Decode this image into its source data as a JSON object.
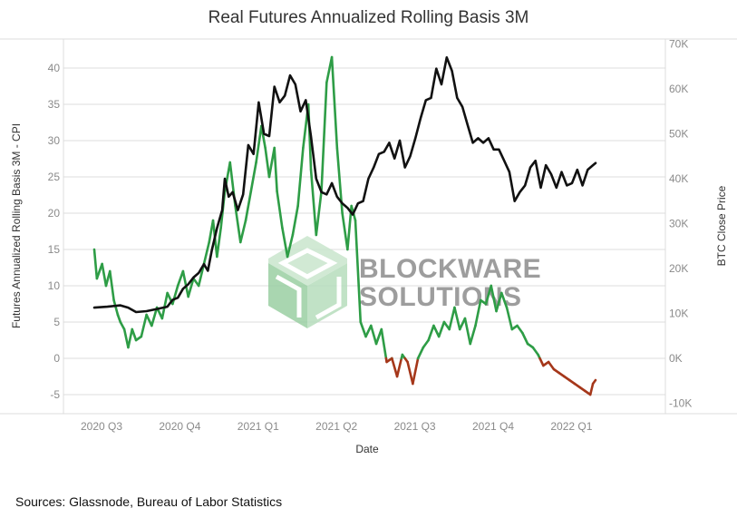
{
  "title": "Real Futures Annualized Rolling Basis 3M",
  "source": "Sources: Glassnode, Bureau of Labor Statistics",
  "watermark": {
    "line1": "BLOCKWARE",
    "line2": "SOLUTIONS"
  },
  "colors": {
    "basis_positive": "#2e9d46",
    "basis_negative": "#a5371a",
    "btc_price": "#111111",
    "watermark_green": "#9bcfa3",
    "watermark_text": "#8d8d8d",
    "grid": "#dcdcdc"
  },
  "chart_data": {
    "type": "line",
    "title": "Real Futures Annualized Rolling Basis 3M",
    "xlabel": "Date",
    "ylabel": "Futures Annualized Rolling Basis 3M - CPI",
    "y2label": "BTC Close Price",
    "ylim": [
      -7.5,
      42.5
    ],
    "y2lim": [
      -10000,
      70000
    ],
    "yticks": [
      "40",
      "35",
      "30",
      "25",
      "20",
      "15",
      "10",
      "5",
      "0",
      "-5"
    ],
    "y2ticks": [
      "70K",
      "60K",
      "50K",
      "40K",
      "30K",
      "20K",
      "10K",
      "0K",
      "-10K"
    ],
    "xticks": [
      "2020 Q3",
      "2020 Q4",
      "2021 Q1",
      "2021 Q2",
      "2021 Q3",
      "2021 Q4",
      "2022 Q1"
    ],
    "x_unit": "months since 2020 Q3 start",
    "grid": "horizontal",
    "series": [
      {
        "axis": "left",
        "note": "drawn green when value >= 0, red-brown when below 0",
        "x": [
          0.0,
          0.1,
          0.3,
          0.45,
          0.6,
          0.75,
          0.9,
          1.0,
          1.15,
          1.3,
          1.45,
          1.6,
          1.8,
          2.0,
          2.2,
          2.4,
          2.6,
          2.8,
          3.0,
          3.2,
          3.4,
          3.6,
          3.8,
          4.0,
          4.2,
          4.4,
          4.55,
          4.7,
          4.85,
          5.0,
          5.2,
          5.4,
          5.6,
          5.8,
          6.0,
          6.2,
          6.4,
          6.55,
          6.7,
          6.9,
          7.0,
          7.2,
          7.4,
          7.6,
          7.8,
          8.0,
          8.2,
          8.3,
          8.5,
          8.7,
          8.9,
          9.1,
          9.3,
          9.5,
          9.7,
          9.85,
          10.0,
          10.2,
          10.4,
          10.6,
          10.8,
          11.0,
          11.2,
          11.4,
          11.6,
          11.8,
          12.0,
          12.2,
          12.4,
          12.6,
          12.8,
          13.0,
          13.2,
          13.4,
          13.6,
          13.8,
          14.0,
          14.2,
          14.4,
          14.6,
          14.8,
          15.0,
          15.2,
          15.4,
          15.6,
          15.8,
          16.0,
          16.2,
          16.4,
          16.6,
          16.8,
          17.0,
          17.2,
          17.4,
          17.6,
          17.8,
          18.0,
          18.2,
          18.4,
          18.6,
          18.8,
          19.0,
          19.1,
          19.2
        ],
        "y": [
          15,
          11,
          13,
          10,
          12,
          8,
          6,
          5,
          4,
          1.5,
          4,
          2.5,
          3,
          6,
          4.5,
          7,
          5.5,
          9,
          7.5,
          10,
          12,
          8.5,
          11,
          10,
          13,
          16,
          19,
          14,
          18,
          23,
          27,
          21,
          16,
          19,
          23,
          27,
          32,
          29,
          25,
          29,
          23,
          18,
          14,
          17,
          21,
          29,
          35,
          26,
          17,
          23,
          38,
          41.5,
          29,
          20,
          15,
          21,
          19,
          5,
          3,
          4.5,
          2,
          4,
          -0.5,
          0,
          -2.5,
          0.5,
          -0.5,
          -3.5,
          0,
          1.5,
          2.5,
          4.5,
          3,
          5,
          4,
          7,
          4,
          5.5,
          2,
          4.5,
          8,
          7.5,
          10,
          6.5,
          9,
          7,
          4,
          4.5,
          3.5,
          2,
          1.5,
          0.5,
          -1,
          -0.5,
          -1.5,
          -2,
          -2.5,
          -3,
          -3.5,
          -4,
          -4.5,
          -5,
          -3.5,
          -3
        ]
      },
      {
        "axis": "right",
        "x": [
          0.0,
          0.5,
          1.0,
          1.3,
          1.6,
          2.0,
          2.4,
          2.8,
          3.0,
          3.2,
          3.4,
          3.6,
          3.8,
          4.0,
          4.2,
          4.35,
          4.5,
          4.7,
          4.9,
          5.0,
          5.15,
          5.3,
          5.5,
          5.7,
          5.9,
          6.1,
          6.3,
          6.5,
          6.7,
          6.9,
          7.1,
          7.3,
          7.5,
          7.7,
          7.9,
          8.1,
          8.3,
          8.5,
          8.7,
          8.9,
          9.1,
          9.3,
          9.5,
          9.7,
          9.9,
          10.1,
          10.3,
          10.5,
          10.7,
          10.9,
          11.1,
          11.3,
          11.5,
          11.7,
          11.9,
          12.1,
          12.3,
          12.5,
          12.7,
          12.9,
          13.1,
          13.3,
          13.5,
          13.7,
          13.9,
          14.1,
          14.3,
          14.5,
          14.7,
          14.9,
          15.1,
          15.3,
          15.5,
          15.7,
          15.9,
          16.1,
          16.3,
          16.5,
          16.7,
          16.9,
          17.1,
          17.3,
          17.5,
          17.7,
          17.9,
          18.1,
          18.3,
          18.5,
          18.7,
          18.9,
          19.1,
          19.2
        ],
        "y": [
          11300,
          11500,
          11800,
          11300,
          10300,
          10500,
          11000,
          11500,
          13000,
          13500,
          15500,
          16500,
          18000,
          19000,
          21000,
          19500,
          24000,
          29000,
          33000,
          40000,
          36000,
          37000,
          33000,
          36500,
          47500,
          45500,
          57000,
          50000,
          49500,
          60500,
          57000,
          58500,
          63000,
          61000,
          55000,
          57500,
          49500,
          40000,
          37000,
          36500,
          39000,
          36000,
          34500,
          33500,
          32000,
          34500,
          35000,
          40000,
          42500,
          45500,
          46000,
          48000,
          44500,
          48500,
          42500,
          45000,
          49000,
          53500,
          57500,
          58000,
          64500,
          61000,
          67000,
          64000,
          58000,
          56000,
          52000,
          48000,
          49000,
          48000,
          49000,
          46500,
          46500,
          44000,
          41500,
          35000,
          37000,
          38500,
          42500,
          44000,
          38000,
          43000,
          41000,
          38000,
          41500,
          38500,
          39000,
          42000,
          38500,
          42000,
          43000,
          43500
        ]
      }
    ]
  }
}
